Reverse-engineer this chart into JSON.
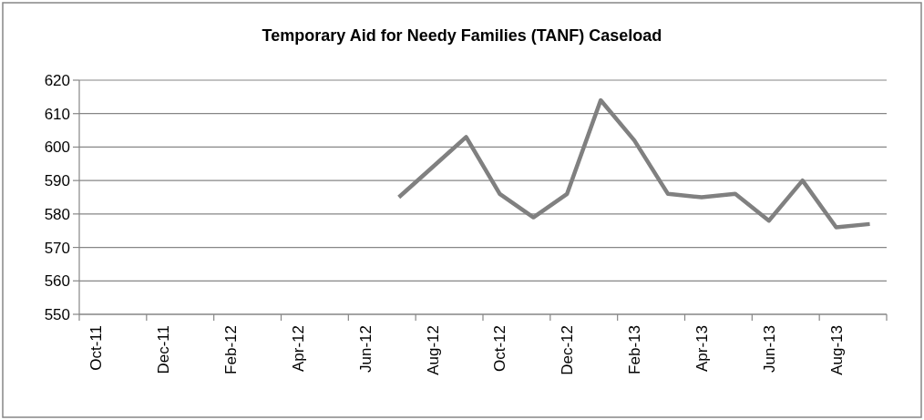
{
  "chart_data": {
    "type": "line",
    "title": "Temporary Aid for Needy Families (TANF) Caseload",
    "categories": [
      "Oct-11",
      null,
      "Dec-11",
      null,
      "Feb-12",
      null,
      "Apr-12",
      null,
      "Jun-12",
      null,
      "Aug-12",
      null,
      "Oct-12",
      null,
      "Dec-12",
      null,
      "Feb-13",
      null,
      "Apr-13",
      null,
      "Jun-13",
      null,
      "Aug-13",
      null
    ],
    "series": [
      {
        "color": "#808080",
        "values": [
          null,
          null,
          null,
          null,
          null,
          null,
          null,
          null,
          null,
          585,
          594,
          603,
          586,
          579,
          586,
          614,
          602,
          586,
          585,
          586,
          578,
          590,
          576,
          577
        ]
      }
    ],
    "ylim": [
      550,
      620
    ],
    "yticks": [
      550,
      560,
      570,
      580,
      590,
      600,
      610,
      620
    ],
    "grid": "y",
    "marker": "none",
    "line_style": "solid"
  }
}
